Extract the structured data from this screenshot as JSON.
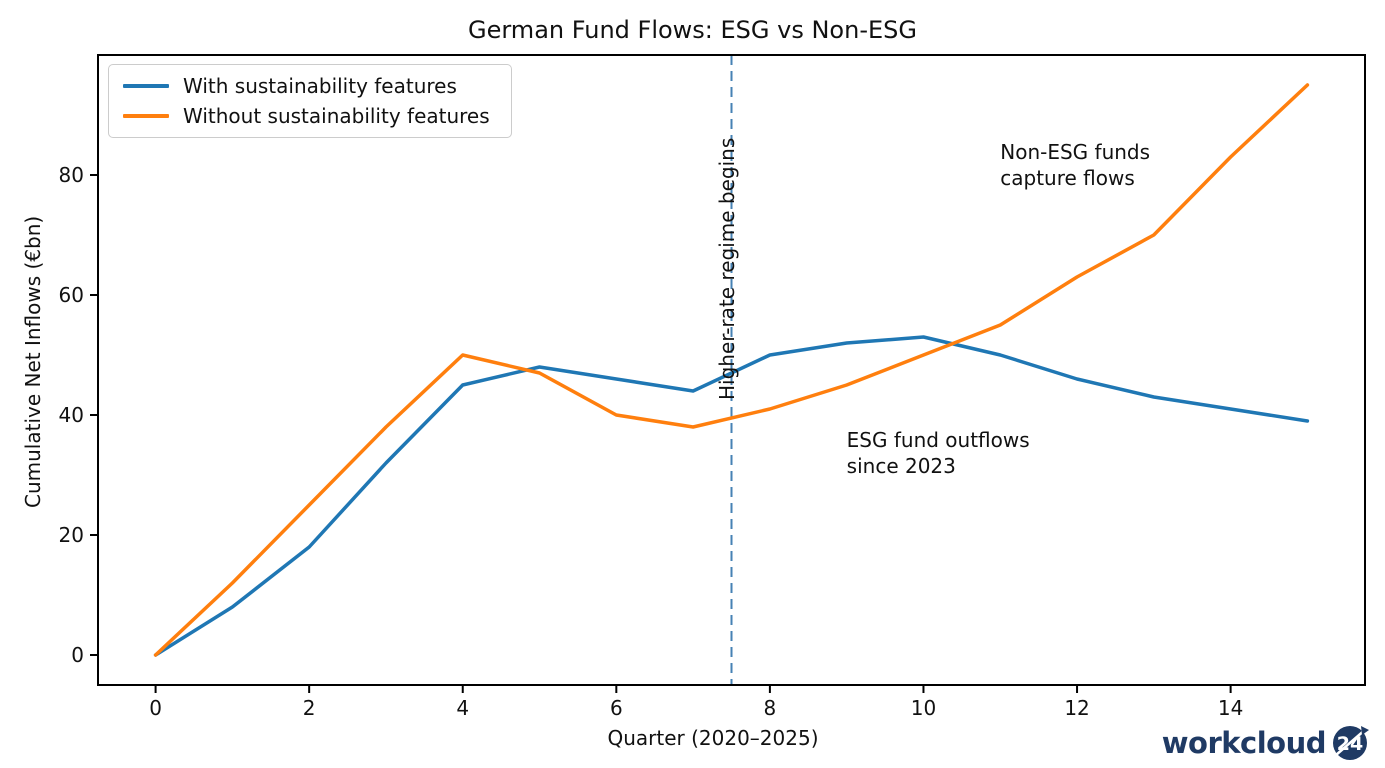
{
  "chart_data": {
    "type": "line",
    "title": "German Fund Flows: ESG vs Non-ESG",
    "xlabel": "Quarter (2020–2025)",
    "ylabel": "Cumulative Net Inflows (€bn)",
    "x": [
      0,
      1,
      2,
      3,
      4,
      5,
      6,
      7,
      8,
      9,
      10,
      11,
      12,
      13,
      14,
      15
    ],
    "series": [
      {
        "name": "With sustainability features",
        "color": "#1f77b4",
        "values": [
          0,
          8,
          18,
          32,
          45,
          48,
          46,
          44,
          50,
          52,
          53,
          50,
          46,
          43,
          41,
          39
        ]
      },
      {
        "name": "Without sustainability features",
        "color": "#ff7f0e",
        "values": [
          0,
          12,
          25,
          38,
          50,
          47,
          40,
          38,
          41,
          45,
          50,
          55,
          63,
          70,
          83,
          95
        ]
      }
    ],
    "xlim": [
      -0.75,
      15.75
    ],
    "ylim": [
      -5,
      100
    ],
    "xticks": [
      0,
      2,
      4,
      6,
      8,
      10,
      12,
      14
    ],
    "yticks": [
      0,
      20,
      40,
      60,
      80
    ],
    "grid": false,
    "legend_position": "upper left",
    "vline": {
      "x": 7.5,
      "color": "#4682b4",
      "style": "dashed",
      "label": "Higher-rate regime begins",
      "label_x": 7.6,
      "label_y": 42.5
    },
    "annotations": [
      {
        "text": "Non-ESG funds\ncapture flows",
        "x": 11,
        "y": 86
      },
      {
        "text": "ESG fund outflows\nsince 2023",
        "x": 9,
        "y": 38
      }
    ]
  },
  "branding": {
    "logo_text": "workcloud",
    "logo_badge": "24",
    "logo_color": "#1f3a64"
  }
}
